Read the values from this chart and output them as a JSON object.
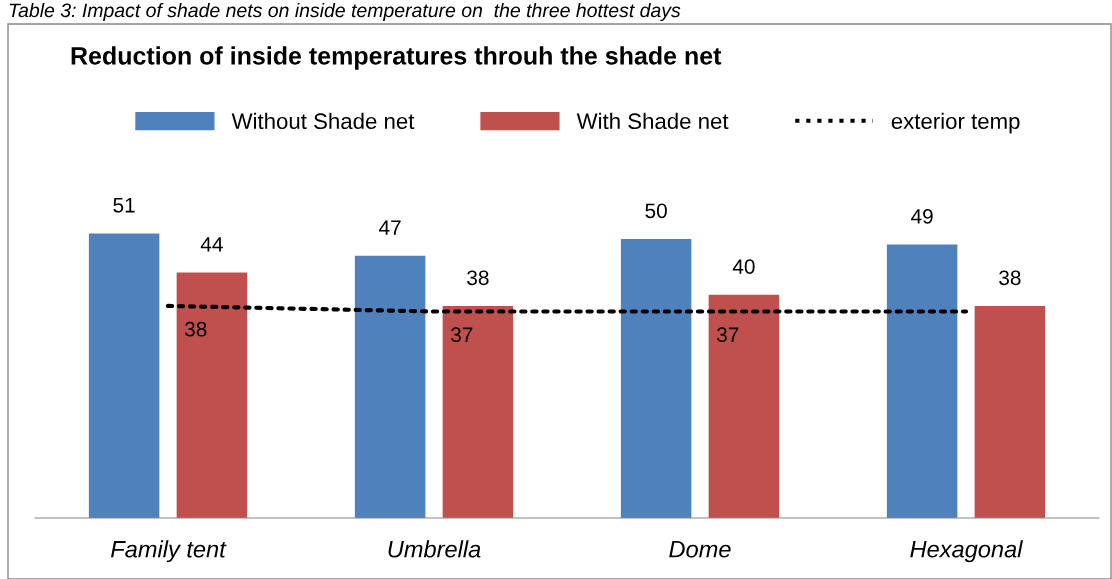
{
  "chart_data": {
    "type": "bar",
    "title": "Reduction of inside temperatures throuh the shade net",
    "annotations": [
      "Table 3: Impact of shade nets on inside temperature on  the three hottest days"
    ],
    "categories": [
      "Family tent",
      "Umbrella",
      "Dome",
      "Hexagonal"
    ],
    "series": [
      {
        "name": "Without Shade net",
        "color": "#4f81bd",
        "values": [
          51,
          47,
          50,
          49
        ]
      },
      {
        "name": "With Shade net",
        "color": "#c0504d",
        "values": [
          44,
          38,
          40,
          38
        ]
      },
      {
        "name": "exterior temp",
        "type": "line",
        "color": "#000000",
        "line_style": "dotted",
        "marker": "none",
        "values": [
          38,
          37,
          37,
          37
        ],
        "value_labels": [
          "38",
          "37",
          "37",
          null
        ]
      }
    ],
    "data_labels": true,
    "legend": "top",
    "grid": false
  }
}
